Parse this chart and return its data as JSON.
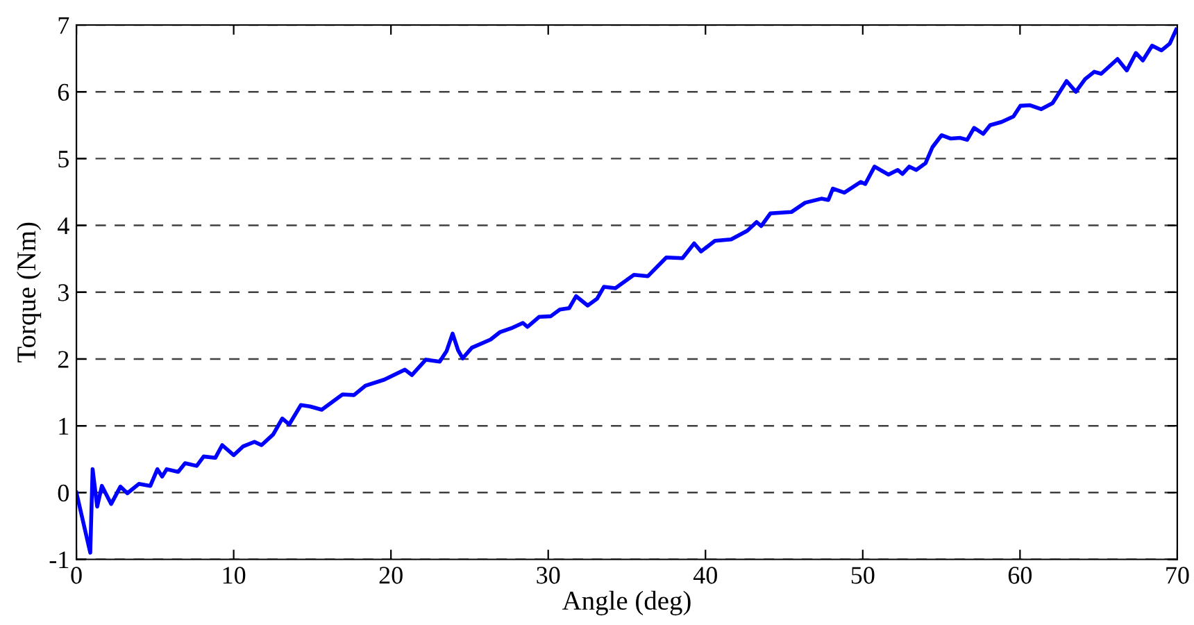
{
  "chart_data": {
    "type": "line",
    "xlabel": "Angle (deg)",
    "ylabel": "Torque (Nm)",
    "xlim": [
      0,
      70
    ],
    "xticks": [
      0,
      10,
      20,
      30,
      40,
      50,
      60,
      70
    ],
    "ylim": [
      -1,
      7
    ],
    "yticks": [
      -1,
      0,
      1,
      2,
      3,
      4,
      5,
      6,
      7
    ],
    "grid": "y",
    "marker": "none",
    "line_style": "solid",
    "series": [
      {
        "color": "#0000ff",
        "x": [
          0,
          0.88,
          1.03,
          1.32,
          1.62,
          2.21,
          2.8,
          3.24,
          3.97,
          4.7,
          5.15,
          5.45,
          5.74,
          6.47,
          6.91,
          7.65,
          8.09,
          8.83,
          9.27,
          10.0,
          10.59,
          11.32,
          11.77,
          12.51,
          13.09,
          13.53,
          14.27,
          14.85,
          15.6,
          16.92,
          17.65,
          18.38,
          19.57,
          20.89,
          21.33,
          22.22,
          23.1,
          23.54,
          23.92,
          24.27,
          24.56,
          25.15,
          26.33,
          26.92,
          27.65,
          28.39,
          28.68,
          29.42,
          30.16,
          30.74,
          31.33,
          31.77,
          32.51,
          33.1,
          33.54,
          34.27,
          35.45,
          36.34,
          37.51,
          38.54,
          39.28,
          39.72,
          40.6,
          41.63,
          42.66,
          43.25,
          43.54,
          44.13,
          45.46,
          46.34,
          47.37,
          47.81,
          48.1,
          48.83,
          49.87,
          50.16,
          50.75,
          51.63,
          52.22,
          52.52,
          52.96,
          53.4,
          53.99,
          54.43,
          55.01,
          55.6,
          56.2,
          56.64,
          57.08,
          57.66,
          58.1,
          58.84,
          59.58,
          60.02,
          60.61,
          61.34,
          62.07,
          62.96,
          63.55,
          64.14,
          64.72,
          65.16,
          66.2,
          66.79,
          67.37,
          67.81,
          68.4,
          68.99,
          69.52,
          69.93
        ],
        "values": [
          0,
          -0.9,
          0.35,
          -0.21,
          0.1,
          -0.17,
          0.09,
          -0.01,
          0.13,
          0.1,
          0.35,
          0.24,
          0.35,
          0.31,
          0.44,
          0.4,
          0.54,
          0.52,
          0.71,
          0.56,
          0.69,
          0.76,
          0.71,
          0.87,
          1.11,
          1.02,
          1.31,
          1.29,
          1.24,
          1.47,
          1.46,
          1.6,
          1.69,
          1.84,
          1.76,
          1.99,
          1.96,
          2.12,
          2.38,
          2.13,
          2.01,
          2.17,
          2.29,
          2.4,
          2.46,
          2.54,
          2.48,
          2.63,
          2.64,
          2.74,
          2.76,
          2.94,
          2.8,
          2.9,
          3.08,
          3.06,
          3.26,
          3.24,
          3.52,
          3.51,
          3.73,
          3.61,
          3.77,
          3.79,
          3.92,
          4.05,
          3.99,
          4.18,
          4.2,
          4.34,
          4.4,
          4.38,
          4.55,
          4.49,
          4.65,
          4.62,
          4.88,
          4.76,
          4.83,
          4.77,
          4.88,
          4.83,
          4.93,
          5.17,
          5.35,
          5.3,
          5.31,
          5.28,
          5.46,
          5.37,
          5.5,
          5.55,
          5.63,
          5.79,
          5.8,
          5.74,
          5.83,
          6.16,
          6.0,
          6.19,
          6.3,
          6.27,
          6.49,
          6.32,
          6.58,
          6.47,
          6.69,
          6.62,
          6.72,
          6.93
        ]
      }
    ]
  }
}
